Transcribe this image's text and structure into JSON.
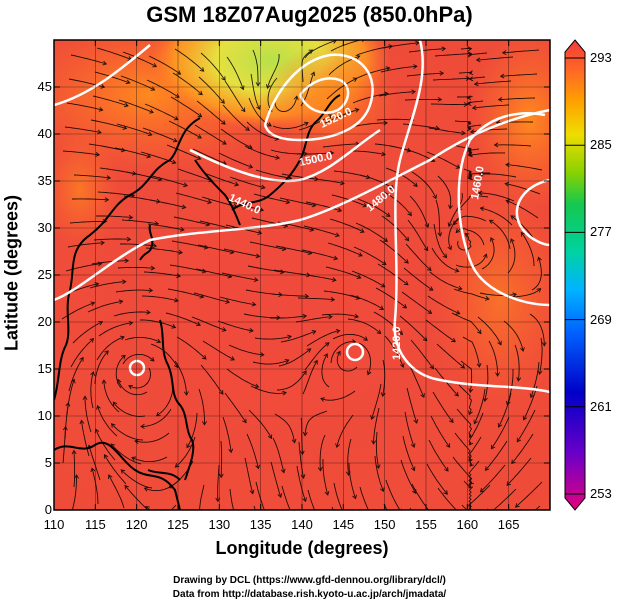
{
  "title": "GSM 18Z07Aug2025 (850.0hPa)",
  "map": {
    "xlabel": "Longitude (degrees)",
    "ylabel": "Latitude  (degrees)",
    "x_ticks": [
      "110",
      "115",
      "120",
      "125",
      "130",
      "135",
      "140",
      "145",
      "150",
      "155",
      "160",
      "165"
    ],
    "y_ticks": [
      "0",
      "5",
      "10",
      "15",
      "20",
      "25",
      "30",
      "35",
      "40",
      "45"
    ],
    "lon_range": [
      110,
      170
    ],
    "lat_range": [
      0,
      50
    ],
    "contour_labels": [
      "1520.0",
      "1500.0",
      "1480.0",
      "1460.0",
      "1420.0",
      "1440.0",
      "1460.0"
    ]
  },
  "colorbar": {
    "ticks": [
      "293",
      "285",
      "277",
      "269",
      "261",
      "253"
    ],
    "range": [
      253,
      293
    ],
    "colors": [
      "#e6007e",
      "#6a00c8",
      "#0000c8",
      "#00a0ff",
      "#00d2c8",
      "#00c850",
      "#a0dc00",
      "#f0dc00",
      "#ff9600",
      "#ff5a28",
      "#f03c3c"
    ]
  },
  "credits": {
    "line1": "Drawing by DCL (https://www.gfd-dennou.org/library/dcl/)",
    "line2": "Data from http://database.rish.kyoto-u.ac.jp/arch/jmadata/"
  }
}
